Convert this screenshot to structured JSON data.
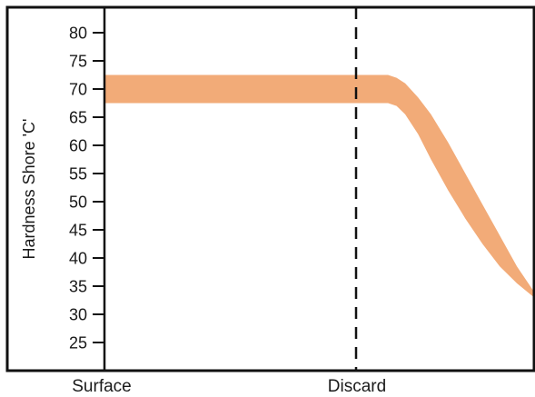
{
  "chart_data": {
    "type": "area",
    "title": "",
    "ylabel": "Hardness Shore 'C'",
    "xlabel": "",
    "ylim": [
      20,
      85
    ],
    "yticks": [
      25,
      30,
      35,
      40,
      45,
      50,
      55,
      60,
      65,
      70,
      75,
      80
    ],
    "x_categories": [
      "Surface",
      "Discard"
    ],
    "grid": false,
    "colors": {
      "band": "#f2ab78",
      "frame": "#111111",
      "divider": "#111111"
    },
    "series": [
      {
        "x_fraction": [
          0.0,
          0.6,
          0.66,
          0.68,
          0.7,
          0.73,
          0.76,
          0.8,
          0.84,
          0.88,
          0.92,
          0.96,
          1.0
        ],
        "upper": [
          72.5,
          72.5,
          72.5,
          72.0,
          71.0,
          68.5,
          65.5,
          60.5,
          55.0,
          49.5,
          44.0,
          38.5,
          34.0
        ],
        "lower": [
          67.5,
          67.5,
          67.5,
          67.0,
          65.5,
          62.0,
          57.5,
          52.0,
          47.0,
          42.5,
          38.5,
          35.5,
          33.0
        ]
      }
    ]
  }
}
